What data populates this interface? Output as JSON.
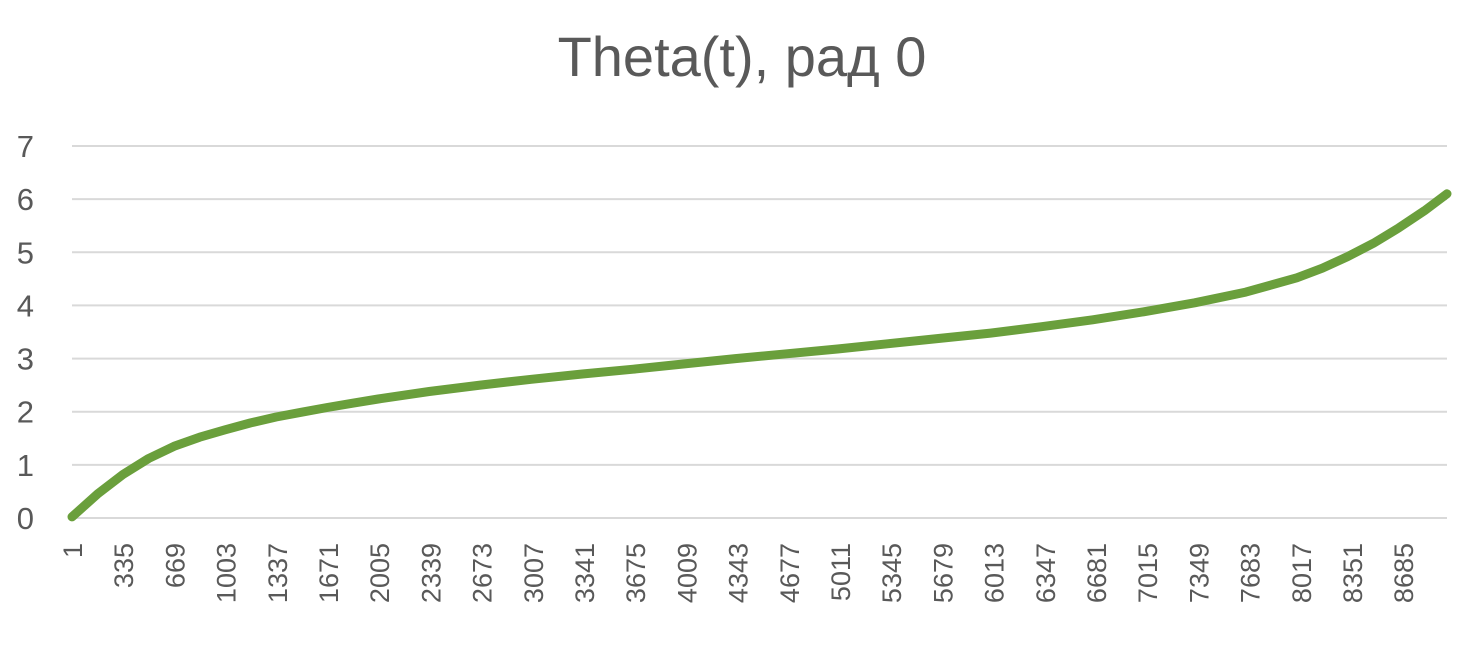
{
  "chart_data": {
    "type": "line",
    "title": "Theta(t), рад 0",
    "xlabel": "",
    "ylabel": "",
    "ylim": [
      0,
      7
    ],
    "y_ticks": [
      "0",
      "1",
      "2",
      "3",
      "4",
      "5",
      "6",
      "7"
    ],
    "x_tick_labels": [
      "1",
      "335",
      "669",
      "1003",
      "1337",
      "1671",
      "2005",
      "2339",
      "2673",
      "3007",
      "3341",
      "3675",
      "4009",
      "4343",
      "4677",
      "5011",
      "5345",
      "5679",
      "6013",
      "6347",
      "6681",
      "7015",
      "7349",
      "7683",
      "8017",
      "8351",
      "8685"
    ],
    "xlim": [
      1,
      9000
    ],
    "grid": true,
    "legend": "none",
    "series": [
      {
        "name": "Theta(t)",
        "color": "#6a9f3c",
        "x": [
          1,
          167,
          335,
          502,
          669,
          836,
          1003,
          1170,
          1337,
          1504,
          1671,
          1838,
          2005,
          2339,
          2673,
          3007,
          3341,
          3675,
          4009,
          4343,
          4677,
          5011,
          5345,
          5679,
          6013,
          6347,
          6681,
          7015,
          7349,
          7683,
          8017,
          8184,
          8351,
          8518,
          8685,
          8852,
          9000
        ],
        "values": [
          0.02,
          0.45,
          0.82,
          1.12,
          1.35,
          1.52,
          1.66,
          1.79,
          1.9,
          1.99,
          2.08,
          2.16,
          2.24,
          2.38,
          2.5,
          2.61,
          2.71,
          2.8,
          2.9,
          3.0,
          3.09,
          3.18,
          3.28,
          3.38,
          3.48,
          3.6,
          3.73,
          3.88,
          4.05,
          4.25,
          4.52,
          4.7,
          4.92,
          5.17,
          5.46,
          5.78,
          6.1
        ]
      }
    ]
  }
}
